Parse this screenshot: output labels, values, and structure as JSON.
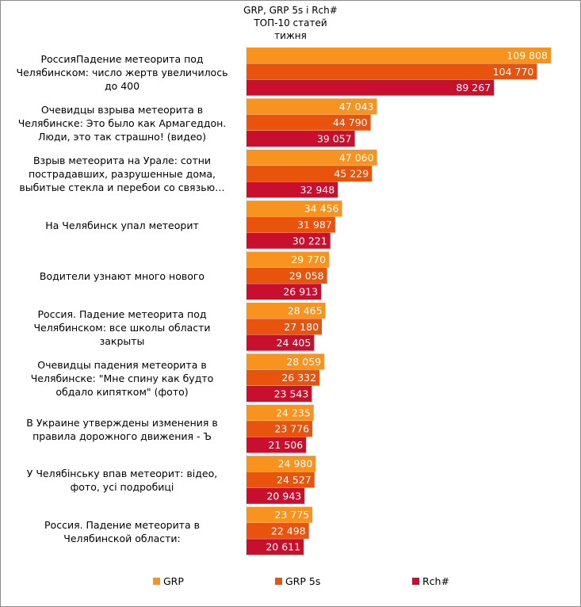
{
  "chart_data": {
    "type": "bar",
    "orientation": "horizontal",
    "title_lines": [
      "GRP, GRP 5s і Rch#",
      "ТОП-10 статей",
      "тижня"
    ],
    "categories": [
      "РоссияПадение метеорита под\nЧелябинском: число жертв увеличилось\nдо 400",
      "Очевидцы взрыва метеорита в\nЧелябинске: Это было как Армагеддон.\nЛюди, это так страшно! (видео)",
      "Взрыв метеорита на Урале: сотни\nпострадавших, разрушенные дома,\nвыбитые стекла и перебои со связью…",
      "На Челябинск упал метеорит",
      "Водители узнают много нового",
      "Россия. Падение метеорита под\nЧелябинском: все школы области\nзакрыты",
      "Очевидцы падения метеорита в\nЧелябинске: \"Мне спину как будто\nобдало кипятком\" (фото)",
      "В Украине утверждены изменения в\nправила дорожного движения - Ъ",
      "У Челябінську впав метеорит: відео,\nфото, усі подробиці",
      "Россия. Падение метеорита в\nЧелябинской области:"
    ],
    "series": [
      {
        "name": "GRP",
        "color": "#f7931e",
        "values": [
          109808,
          47043,
          47060,
          34456,
          29770,
          28465,
          28059,
          24235,
          24980,
          23775
        ],
        "labels": [
          "109 808",
          "47 043",
          "47 060",
          "34 456",
          "29 770",
          "28 465",
          "28 059",
          "24 235",
          "24 980",
          "23 775"
        ]
      },
      {
        "name": "GRP 5s",
        "color": "#e8530e",
        "values": [
          104770,
          44790,
          45229,
          31987,
          29058,
          27180,
          26332,
          23776,
          24527,
          22498
        ],
        "labels": [
          "104 770",
          "44 790",
          "45 229",
          "31 987",
          "29 058",
          "27 180",
          "26 332",
          "23 776",
          "24 527",
          "22 498"
        ]
      },
      {
        "name": "Rch#",
        "color": "#c8102e",
        "values": [
          89267,
          39057,
          32948,
          30221,
          26913,
          24405,
          23543,
          21506,
          20943,
          20611
        ],
        "labels": [
          "89 267",
          "39 057",
          "32 948",
          "30 221",
          "26 913",
          "24 405",
          "23 543",
          "21 506",
          "20 943",
          "20 611"
        ]
      }
    ],
    "legend_position": "bottom",
    "grid": false,
    "axis_visible": false
  }
}
